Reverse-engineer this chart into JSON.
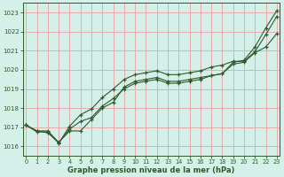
{
  "xlabel": "Graphe pression niveau de la mer (hPa)",
  "bg_color": "#d4f0e8",
  "grid_color": "#e8aaaa",
  "line_color": "#2d5a2d",
  "x_ticks": [
    0,
    1,
    2,
    3,
    4,
    5,
    6,
    7,
    8,
    9,
    10,
    11,
    12,
    13,
    14,
    15,
    16,
    17,
    18,
    19,
    20,
    21,
    22,
    23
  ],
  "ylim": [
    1015.5,
    1023.5
  ],
  "xlim": [
    -0.3,
    23.3
  ],
  "yticks": [
    1016,
    1017,
    1018,
    1019,
    1020,
    1021,
    1022,
    1023
  ],
  "series1": [
    1017.1,
    1016.8,
    1016.8,
    1016.2,
    1016.8,
    1016.8,
    1017.4,
    1018.0,
    1018.3,
    1019.1,
    1019.4,
    1019.5,
    1019.6,
    1019.4,
    1019.4,
    1019.5,
    1019.6,
    1019.7,
    1019.8,
    1020.4,
    1020.5,
    1021.2,
    1022.2,
    1023.1
  ],
  "series2": [
    1017.1,
    1016.8,
    1016.7,
    1016.2,
    1016.9,
    1017.3,
    1017.5,
    1018.1,
    1018.5,
    1019.0,
    1019.3,
    1019.4,
    1019.5,
    1019.3,
    1019.3,
    1019.4,
    1019.5,
    1019.7,
    1019.8,
    1020.3,
    1020.4,
    1020.9,
    1021.2,
    1021.9
  ],
  "series3": [
    1017.1,
    1016.75,
    1016.75,
    1016.15,
    1017.05,
    1017.65,
    1017.95,
    1018.55,
    1019.0,
    1019.5,
    1019.75,
    1019.85,
    1019.95,
    1019.75,
    1019.75,
    1019.85,
    1019.95,
    1020.15,
    1020.25,
    1020.45,
    1020.45,
    1020.95,
    1021.85,
    1022.8
  ]
}
